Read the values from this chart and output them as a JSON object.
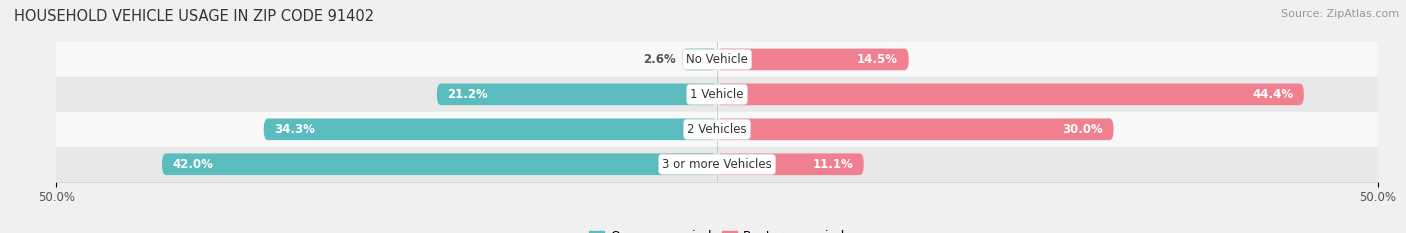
{
  "title": "HOUSEHOLD VEHICLE USAGE IN ZIP CODE 91402",
  "source": "Source: ZipAtlas.com",
  "categories": [
    "No Vehicle",
    "1 Vehicle",
    "2 Vehicles",
    "3 or more Vehicles"
  ],
  "owner_values": [
    2.6,
    21.2,
    34.3,
    42.0
  ],
  "renter_values": [
    14.5,
    44.4,
    30.0,
    11.1
  ],
  "owner_labels": [
    "2.6%",
    "21.2%",
    "34.3%",
    "42.0%"
  ],
  "renter_labels": [
    "14.5%",
    "44.4%",
    "30.0%",
    "11.1%"
  ],
  "owner_color": "#5bbcbf",
  "renter_color": "#f08090",
  "background_color": "#f0f0f0",
  "row_bg_light": "#f8f8f8",
  "row_bg_dark": "#e8e8e8",
  "bar_height": 0.62,
  "xlim_left": -50,
  "xlim_right": 50,
  "title_fontsize": 10.5,
  "source_fontsize": 8,
  "label_fontsize": 8.5,
  "tick_fontsize": 8.5,
  "legend_fontsize": 9,
  "cat_fontsize": 8.5
}
